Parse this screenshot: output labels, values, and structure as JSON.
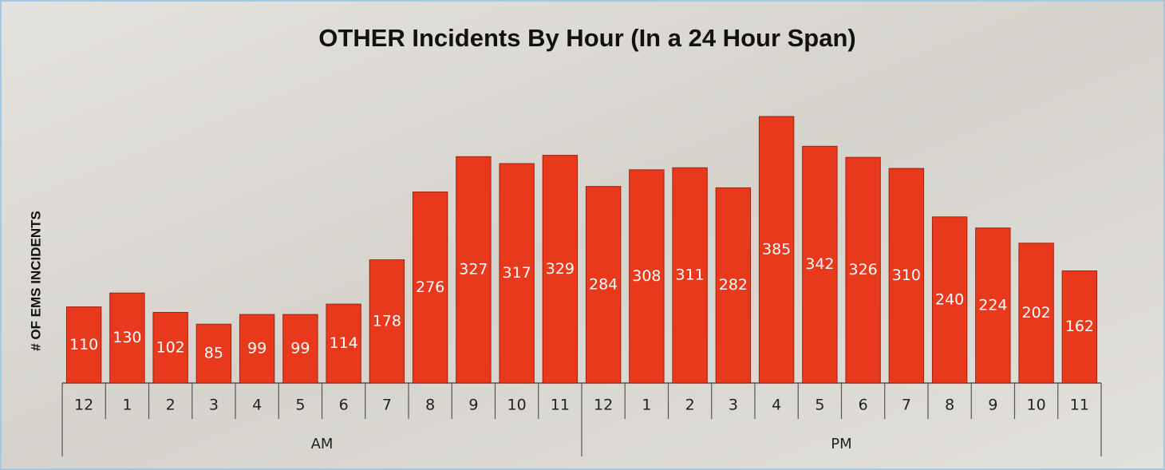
{
  "chart_data": {
    "type": "bar",
    "title": "OTHER Incidents By Hour (In a 24 Hour Span)",
    "y_label": "# OF EMS INCIDENTS",
    "categories": [
      "12",
      "1",
      "2",
      "3",
      "4",
      "5",
      "6",
      "7",
      "8",
      "9",
      "10",
      "11",
      "12",
      "1",
      "2",
      "3",
      "4",
      "5",
      "6",
      "7",
      "8",
      "9",
      "10",
      "11"
    ],
    "groups": [
      "AM",
      "PM"
    ],
    "values": [
      110,
      130,
      102,
      85,
      99,
      99,
      114,
      178,
      276,
      327,
      317,
      329,
      284,
      308,
      311,
      282,
      385,
      342,
      326,
      310,
      240,
      224,
      202,
      162
    ],
    "color": "#e8391d",
    "ylim": [
      0,
      400
    ]
  }
}
